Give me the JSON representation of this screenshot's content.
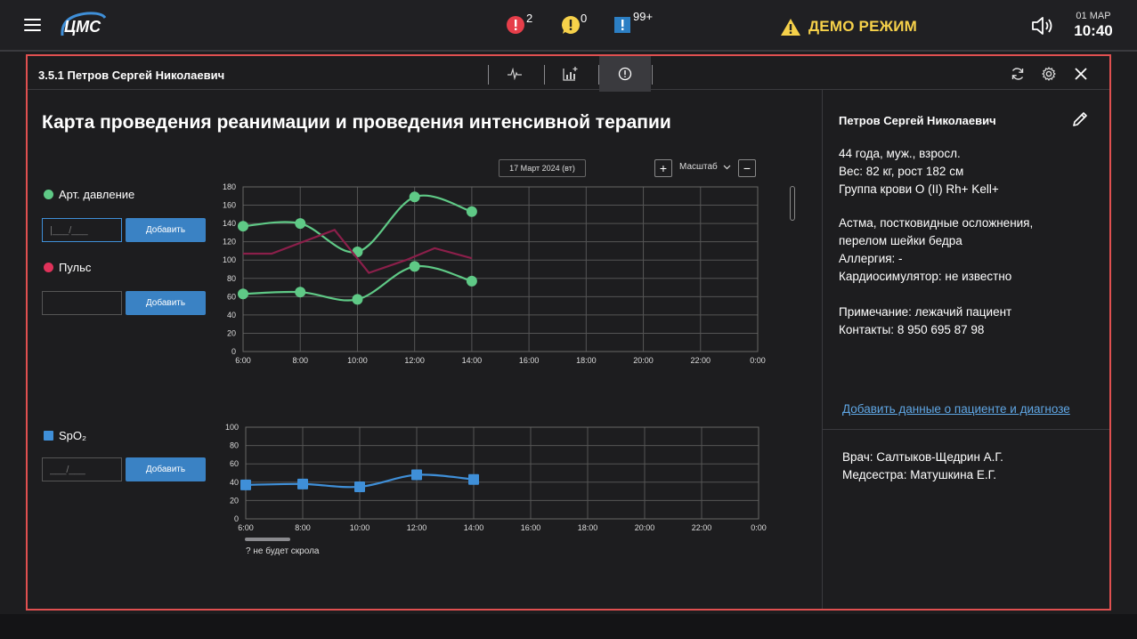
{
  "header": {
    "logo_text": "ЦМС",
    "alerts": [
      {
        "icon": "red-alert-icon",
        "count": "2",
        "color": "#e63e4a"
      },
      {
        "icon": "yellow-alert-icon",
        "count": "0",
        "color": "#f6d14a"
      },
      {
        "icon": "blue-alert-icon",
        "count": "99+",
        "color": "#2c7fc4"
      }
    ],
    "demo_label": "ДЕМО РЕЖИМ",
    "date": "01 МАР",
    "time": "10:40"
  },
  "panel": {
    "title": "3.5.1 Петров Сергей Николаевич",
    "main_title": "Карта проведения реанимации и проведения интенсивной терапии"
  },
  "controls": {
    "date": "17 Март 2024 (вт)",
    "plus": "+",
    "scale": "Масштаб",
    "minus": "−"
  },
  "legend": {
    "bp_label": "Арт. давление",
    "bp_placeholder": "|___/___",
    "pulse_label": "Пульс",
    "spo2_label": "SpO₂",
    "spo2_placeholder": "___/___",
    "add_label": "Добавить"
  },
  "colors": {
    "bp": "#5fc986",
    "pulse": "#8b1f4a",
    "spo2": "#3f8fd8",
    "accent": "#e05050"
  },
  "chart_data": [
    {
      "type": "line",
      "x": [
        "6:00",
        "8:00",
        "10:00",
        "12:00",
        "14:00",
        "16:00",
        "18:00",
        "20:00",
        "22:00",
        "0:00"
      ],
      "yticks": [
        0,
        20,
        40,
        60,
        80,
        100,
        120,
        140,
        160,
        180
      ],
      "ylim": [
        0,
        180
      ],
      "series": [
        {
          "name": "Арт. давление",
          "points": [
            [
              6,
              137
            ],
            [
              8,
              140
            ],
            [
              10,
              109
            ],
            [
              12,
              169
            ],
            [
              14,
              153
            ]
          ]
        },
        {
          "name": "Арт. давление",
          "points": [
            [
              6,
              63
            ],
            [
              8,
              65
            ],
            [
              10,
              57
            ],
            [
              12,
              93
            ],
            [
              14,
              77
            ]
          ]
        },
        {
          "name": "Пульс",
          "points": [
            [
              6,
              107
            ],
            [
              7,
              107
            ],
            [
              9.2,
              133
            ],
            [
              10.4,
              86
            ],
            [
              11.7,
              100
            ],
            [
              12.7,
              113
            ],
            [
              14,
              102
            ]
          ]
        }
      ]
    },
    {
      "type": "line",
      "x": [
        "6:00",
        "8:00",
        "10:00",
        "12:00",
        "14:00",
        "16:00",
        "18:00",
        "20:00",
        "22:00",
        "0:00"
      ],
      "yticks": [
        0,
        20,
        40,
        60,
        80,
        100
      ],
      "ylim": [
        0,
        100
      ],
      "series": [
        {
          "name": "SpO₂",
          "points": [
            [
              6,
              37
            ],
            [
              8,
              38
            ],
            [
              10,
              35
            ],
            [
              12,
              48
            ],
            [
              14,
              43
            ]
          ]
        }
      ]
    }
  ],
  "scroll_note": "? не будет скрола",
  "patient": {
    "name": "Петров Сергей Николаевич",
    "age": "44 года, муж., взросл.",
    "weight": "Вес: 82 кг, рост 182 см",
    "blood": "Группа крови O (II) Rh+ Kell+",
    "diag1": "Астма, постковидные осложнения,",
    "diag2": "перелом шейки бедра",
    "allergy": "Аллергия: -",
    "cardio": "Кардиосимулятор: не известно",
    "note": "Примечание: лежачий пациент",
    "contacts": "Контакты: 8 950 695 87 98",
    "add_link": "Добавить данные о пациенте и диагнозе",
    "doctor": "Врач: Салтыков-Щедрин А.Г.",
    "nurse": "Медсестра: Матушкина Е.Г."
  }
}
